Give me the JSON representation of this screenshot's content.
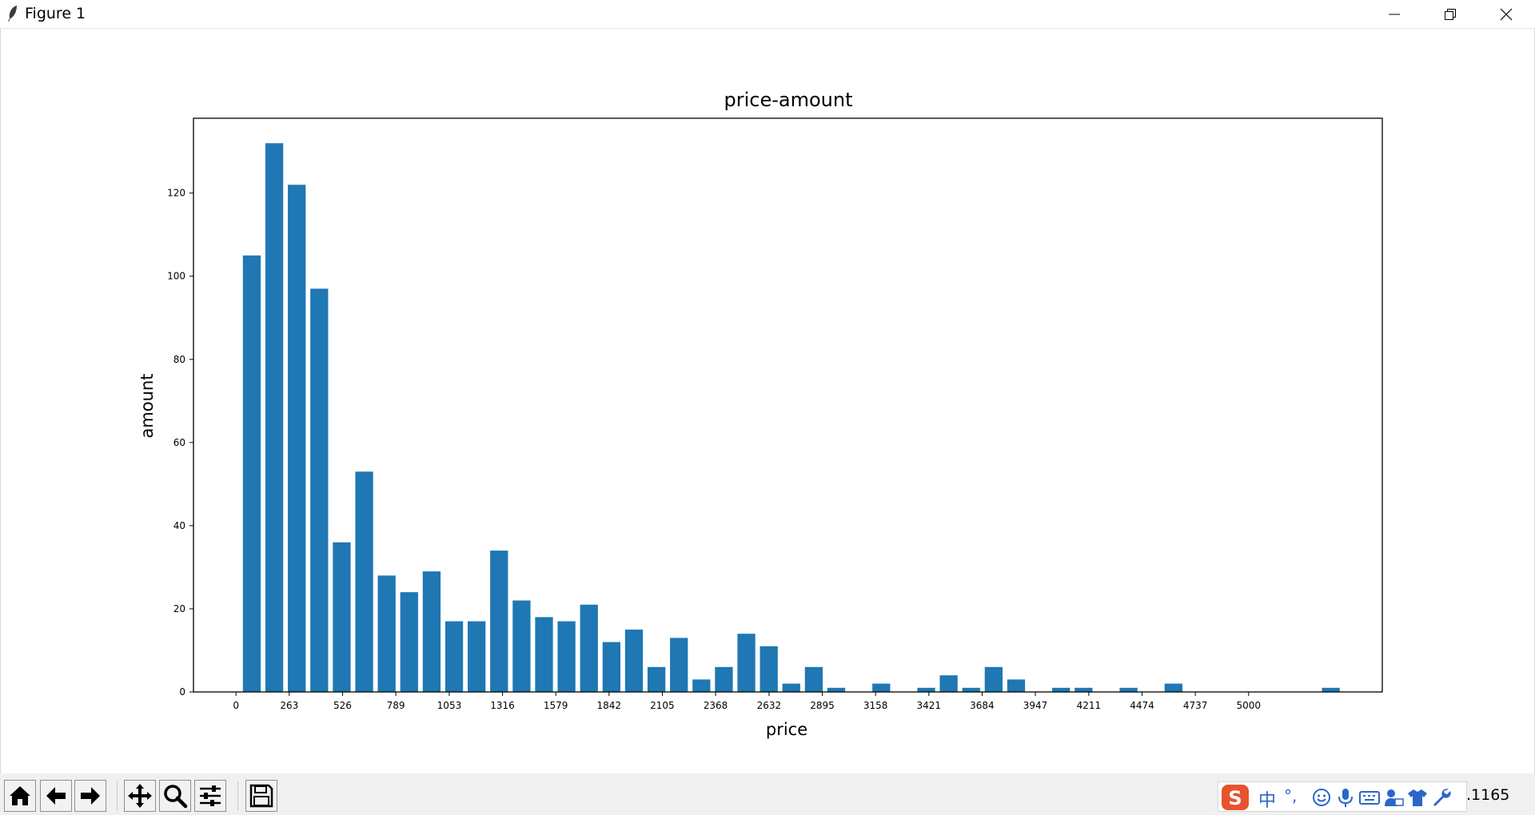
{
  "window": {
    "title": "Figure 1",
    "controls": [
      "minimize",
      "restore",
      "close"
    ]
  },
  "toolbar": {
    "buttons": [
      "home-icon",
      "back-icon",
      "forward-icon",
      "pan-icon",
      "zoom-icon",
      "configure-subplots-icon",
      "save-icon"
    ],
    "readout": ".1165"
  },
  "ime": {
    "logo": "S",
    "mode_label": "中",
    "punct_label": "°,"
  },
  "colors": {
    "bar": "#1f77b4",
    "axes": "#000000",
    "background": "#ffffff"
  },
  "chart_data": {
    "type": "bar",
    "title": "price-amount",
    "xlabel": "price",
    "ylabel": "amount",
    "xlim": [
      -210,
      5660
    ],
    "ylim": [
      0,
      138
    ],
    "bar_width": 88,
    "x_ticks": [
      0,
      263,
      526,
      789,
      1053,
      1316,
      1579,
      1842,
      2105,
      2368,
      2632,
      2895,
      3158,
      3421,
      3684,
      3947,
      4211,
      4474,
      4737,
      5000
    ],
    "x_tick_labels": [
      "0",
      "263",
      "526",
      "789",
      "1053",
      "1316",
      "1579",
      "1842",
      "2105",
      "2368",
      "2632",
      "2895",
      "3158",
      "3421",
      "3684",
      "3947",
      "4211",
      "4474",
      "4737",
      "5000"
    ],
    "y_ticks": [
      0,
      20,
      40,
      60,
      80,
      100,
      120
    ],
    "x": [
      78,
      189,
      300,
      411,
      522,
      633,
      744,
      855,
      966,
      1077,
      1188,
      1299,
      1410,
      1521,
      1632,
      1743,
      1854,
      1965,
      2076,
      2187,
      2298,
      2409,
      2520,
      2631,
      2742,
      2853,
      2964,
      3075,
      3186,
      3297,
      3408,
      3519,
      3630,
      3741,
      3852,
      3963,
      4074,
      4185,
      4296,
      4407,
      4518,
      4629,
      4740,
      4851,
      4962,
      5073,
      5184,
      5295,
      5406
    ],
    "values": [
      105,
      132,
      122,
      97,
      36,
      53,
      28,
      24,
      29,
      17,
      17,
      34,
      22,
      18,
      17,
      21,
      12,
      15,
      6,
      13,
      3,
      6,
      14,
      11,
      2,
      6,
      1,
      0,
      2,
      0,
      1,
      4,
      1,
      6,
      3,
      0,
      1,
      1,
      0,
      1,
      0,
      2,
      0,
      0,
      0,
      0,
      0,
      0,
      1
    ],
    "grid": false,
    "legend": "none"
  }
}
